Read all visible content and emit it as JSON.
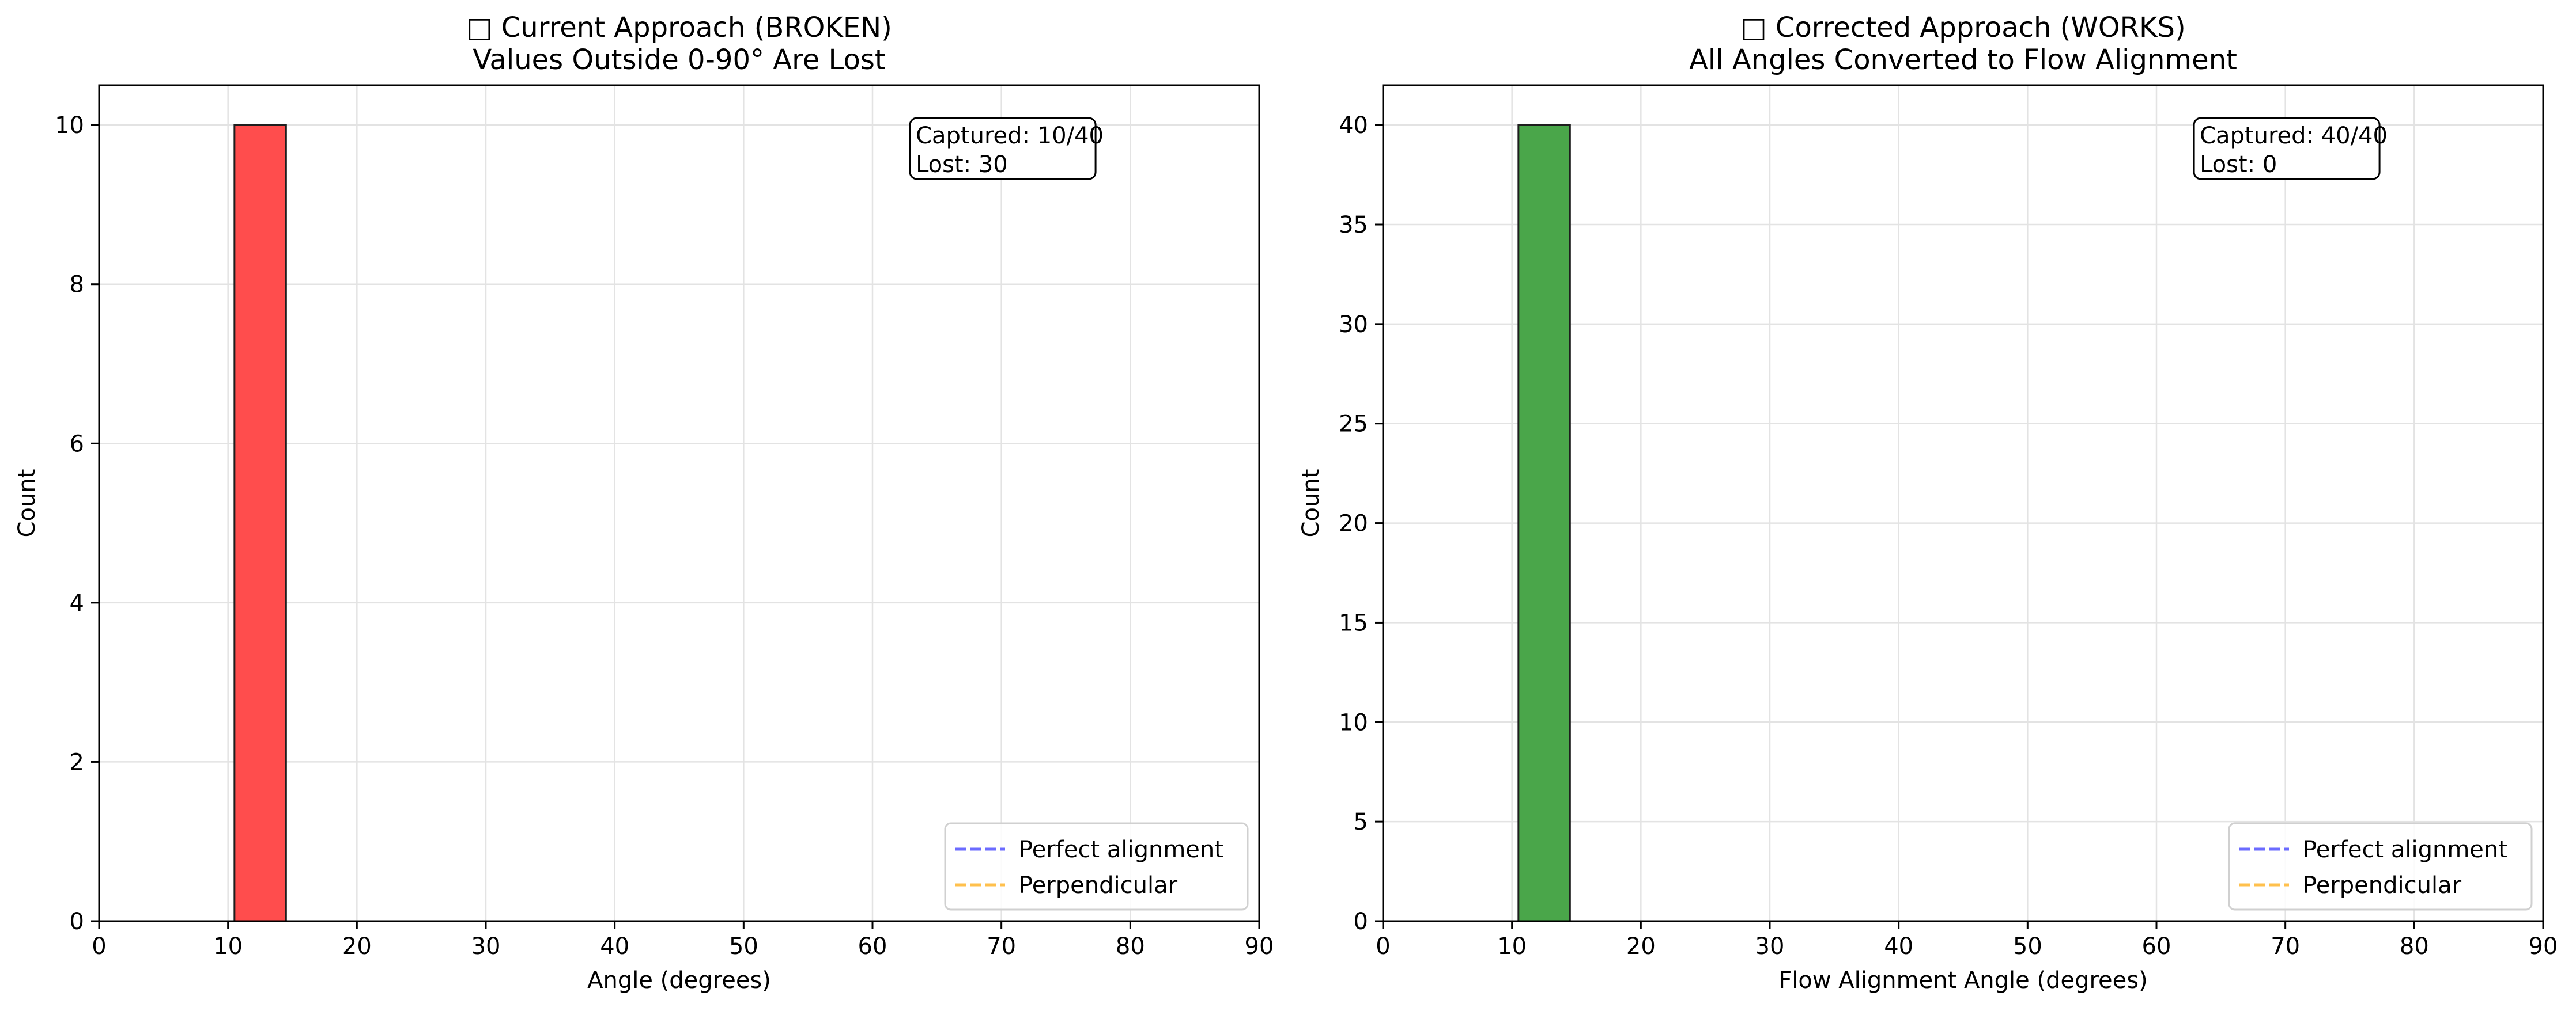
{
  "chart_data": [
    {
      "type": "bar",
      "title_lines": [
        "□ Current Approach (BROKEN)",
        "Values Outside 0-90° Are Lost"
      ],
      "xlabel": "Angle (degrees)",
      "ylabel": "Count",
      "xlim": [
        0,
        90
      ],
      "ylim": [
        0,
        10.5
      ],
      "xticks": [
        0,
        10,
        20,
        30,
        40,
        50,
        60,
        70,
        80,
        90
      ],
      "yticks": [
        0,
        2,
        4,
        6,
        8,
        10
      ],
      "grid": true,
      "bar_color": "#ff4d4d",
      "bin_edges": [
        0,
        4.5,
        9,
        13.5,
        18,
        22.5,
        27,
        31.5,
        36,
        40.5,
        45,
        49.5,
        54,
        58.5,
        63,
        67.5,
        72,
        76.5,
        81,
        85.5,
        90
      ],
      "bins": [
        {
          "x0": 10.5,
          "x1": 14.5,
          "count": 10
        }
      ],
      "annotation": [
        "Captured: 10/40",
        "Lost: 30"
      ],
      "legend": [
        {
          "label": "Perfect alignment",
          "color": "#6b6bff",
          "style": "dashed"
        },
        {
          "label": "Perpendicular",
          "color": "#ffc04d",
          "style": "dashed"
        }
      ],
      "legend_position": "lower right"
    },
    {
      "type": "bar",
      "title_lines": [
        "□ Corrected Approach (WORKS)",
        "All Angles Converted to Flow Alignment"
      ],
      "xlabel": "Flow Alignment Angle (degrees)",
      "ylabel": "Count",
      "xlim": [
        0,
        90
      ],
      "ylim": [
        0,
        42
      ],
      "xticks": [
        0,
        10,
        20,
        30,
        40,
        50,
        60,
        70,
        80,
        90
      ],
      "yticks": [
        0,
        5,
        10,
        15,
        20,
        25,
        30,
        35,
        40
      ],
      "grid": true,
      "bar_color": "#4aa64a",
      "bin_edges": [
        0,
        4.5,
        9,
        13.5,
        18,
        22.5,
        27,
        31.5,
        36,
        40.5,
        45,
        49.5,
        54,
        58.5,
        63,
        67.5,
        72,
        76.5,
        81,
        85.5,
        90
      ],
      "bins": [
        {
          "x0": 10.5,
          "x1": 14.5,
          "count": 40
        }
      ],
      "annotation": [
        "Captured: 40/40",
        "Lost: 0"
      ],
      "legend": [
        {
          "label": "Perfect alignment",
          "color": "#6b6bff",
          "style": "dashed"
        },
        {
          "label": "Perpendicular",
          "color": "#ffc04d",
          "style": "dashed"
        }
      ],
      "legend_position": "lower right"
    }
  ]
}
